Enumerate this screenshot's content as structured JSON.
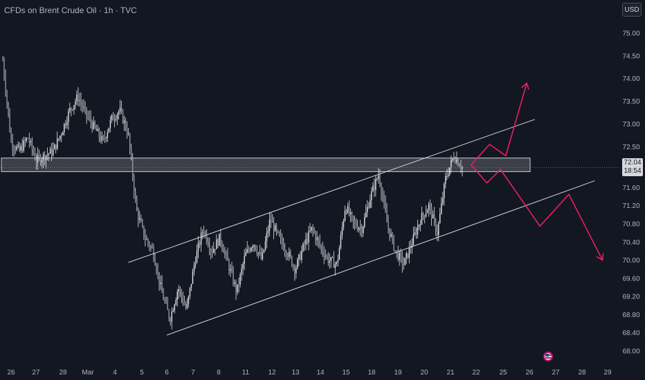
{
  "header": {
    "title": "CFDs on Brent Crude Oil · 1h · TVC"
  },
  "toolbar": {
    "currency_label": "USD"
  },
  "price_tag": {
    "price": "72.04",
    "countdown": "18:54"
  },
  "colors": {
    "background": "#131722",
    "text": "#b2b5be",
    "candle": "#e6e7eb",
    "projection": "#e91e63",
    "channel": "#d1d4dc",
    "zone_fill": "rgba(255,255,255,0.18)"
  },
  "chart_data": {
    "type": "candlestick",
    "x_ticks": [
      "26",
      "27",
      "28",
      "Mar",
      "4",
      "5",
      "6",
      "7",
      "8",
      "11",
      "12",
      "13",
      "14",
      "15",
      "18",
      "19",
      "20",
      "21",
      "22",
      "25",
      "26",
      "27",
      "28",
      "29"
    ],
    "y_ticks": [
      "75.00",
      "74.50",
      "74.00",
      "73.50",
      "73.00",
      "72.50",
      "72.00",
      "71.60",
      "71.20",
      "70.80",
      "70.40",
      "70.00",
      "69.60",
      "69.20",
      "68.80",
      "68.40",
      "68.00"
    ],
    "current_price": 72.04,
    "price_path": [
      [
        0,
        74.4
      ],
      [
        1,
        72.6
      ],
      [
        2,
        72.4
      ],
      [
        3,
        72.7
      ],
      [
        4,
        72.2
      ],
      [
        5,
        72.3
      ],
      [
        6,
        72.4
      ],
      [
        7,
        72.8
      ],
      [
        8,
        73.3
      ],
      [
        9,
        73.6
      ],
      [
        10,
        73.2
      ],
      [
        11,
        72.9
      ],
      [
        12,
        72.6
      ],
      [
        13,
        73.1
      ],
      [
        14,
        73.3
      ],
      [
        15,
        72.8
      ],
      [
        16,
        71.1
      ],
      [
        17,
        70.5
      ],
      [
        18,
        70.2
      ],
      [
        19,
        69.3
      ],
      [
        20,
        68.7
      ],
      [
        21,
        69.4
      ],
      [
        22,
        68.9
      ],
      [
        23,
        70.0
      ],
      [
        24,
        70.7
      ],
      [
        25,
        70.2
      ],
      [
        26,
        70.5
      ],
      [
        27,
        69.9
      ],
      [
        28,
        69.3
      ],
      [
        29,
        70.1
      ],
      [
        30,
        70.4
      ],
      [
        31,
        70.0
      ],
      [
        32,
        70.9
      ],
      [
        33,
        70.5
      ],
      [
        34,
        70.2
      ],
      [
        35,
        69.8
      ],
      [
        36,
        70.3
      ],
      [
        37,
        70.7
      ],
      [
        38,
        70.3
      ],
      [
        39,
        70.0
      ],
      [
        40,
        69.9
      ],
      [
        41,
        71.2
      ],
      [
        42,
        70.8
      ],
      [
        43,
        70.7
      ],
      [
        44,
        71.4
      ],
      [
        45,
        71.9
      ],
      [
        46,
        70.8
      ],
      [
        47,
        70.2
      ],
      [
        48,
        69.9
      ],
      [
        49,
        70.4
      ],
      [
        50,
        70.9
      ],
      [
        51,
        71.2
      ],
      [
        52,
        70.6
      ],
      [
        53,
        71.8
      ],
      [
        54,
        72.3
      ],
      [
        55,
        72.04
      ]
    ],
    "resistance_zone": {
      "from": 71.95,
      "to": 72.25
    },
    "channel": {
      "upper": [
        [
          4.5,
          69.95
        ],
        [
          20.2,
          73.1
        ]
      ],
      "lower": [
        [
          6.0,
          68.35
        ],
        [
          22.5,
          71.75
        ]
      ]
    },
    "projections": {
      "bullish": [
        [
          17.8,
          72.1
        ],
        [
          18.5,
          72.55
        ],
        [
          19.1,
          72.3
        ],
        [
          19.9,
          73.9
        ]
      ],
      "bearish": [
        [
          17.8,
          72.1
        ],
        [
          18.4,
          71.7
        ],
        [
          18.9,
          72.0
        ],
        [
          20.4,
          70.75
        ],
        [
          21.5,
          71.45
        ],
        [
          22.8,
          70.0
        ]
      ]
    },
    "grid": false,
    "legend": "none"
  }
}
